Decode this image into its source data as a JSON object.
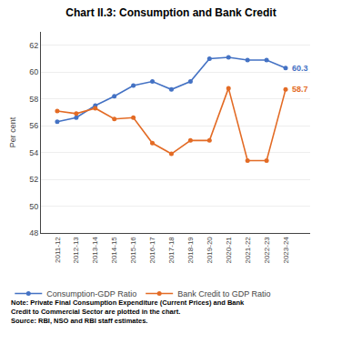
{
  "chart_data": {
    "type": "line",
    "title": "Chart II.3: Consumption and Bank Credit",
    "categories": [
      "2011-12",
      "2012-13",
      "2013-14",
      "2014-15",
      "2015-16",
      "2016-17",
      "2017-18",
      "2018-19",
      "2019-20",
      "2020-21",
      "2021-22",
      "2022-23",
      "2023-24"
    ],
    "series": [
      {
        "name": "Consumption-GDP Ratio",
        "color": "#4472C4",
        "marker": "circle",
        "values": [
          56.3,
          56.6,
          57.5,
          58.2,
          59.0,
          59.3,
          58.7,
          59.3,
          61.0,
          61.1,
          60.9,
          60.9,
          60.3
        ]
      },
      {
        "name": "Bank Credit to GDP Ratio",
        "color": "#E36B25",
        "marker": "circle",
        "values": [
          57.1,
          56.9,
          57.3,
          56.5,
          56.6,
          54.7,
          53.9,
          54.9,
          54.9,
          58.8,
          53.4,
          53.4,
          58.7
        ]
      }
    ],
    "ylabel": "Per cent",
    "ylim": [
      48,
      63
    ],
    "yticks": [
      48,
      50,
      52,
      54,
      56,
      58,
      60,
      62
    ],
    "grid": true,
    "legend": "bottom",
    "annotations": [
      {
        "text": "60.3",
        "x": "2023-24",
        "y": 60.3,
        "series": 0
      },
      {
        "text": "58.7",
        "x": "2023-24",
        "y": 58.7,
        "series": 1
      }
    ],
    "note": "Note: Private Final Consumption Expenditure (Current Prices) and Bank\nCredit to Commercial Sector are plotted in the chart.\nSource: RBI, NSO and RBI staff estimates."
  }
}
